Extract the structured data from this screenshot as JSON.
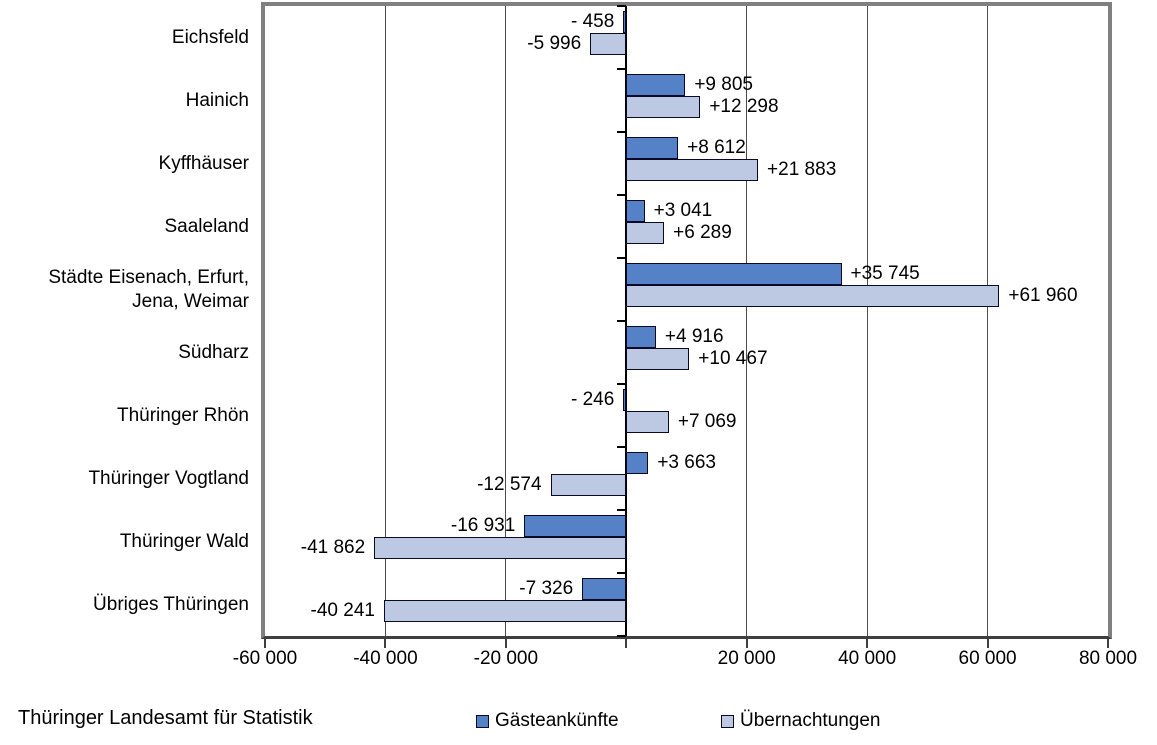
{
  "footer": {
    "source": "Thüringer Landesamt für Statistik"
  },
  "legend": [
    {
      "label": "Gästeankünfte",
      "color": "#5581C6"
    },
    {
      "label": "Übernachtungen",
      "color": "#BDC9E2"
    }
  ],
  "colors": {
    "bar_border": "#0a0a28",
    "plot_border": "#808080",
    "gridline": "#4d4d4d",
    "axis": "#000000"
  },
  "chart_data": {
    "type": "bar",
    "orientation": "horizontal",
    "title": "",
    "xlabel": "",
    "ylabel": "",
    "grid": true,
    "legend_position": "bottom",
    "categories": [
      "Eichsfeld",
      "Hainich",
      "Kyffhäuser",
      "Saaleland",
      "Städte Eisenach, Erfurt, Jena, Weimar",
      "Südharz",
      "Thüringer Rhön",
      "Thüringer Vogtland",
      "Thüringer Wald",
      "Übriges Thüringen"
    ],
    "series": [
      {
        "name": "Gästeankünfte",
        "color": "#5581C6",
        "values": [
          -458,
          9805,
          8612,
          3041,
          35745,
          4916,
          -246,
          3663,
          -16931,
          -7326
        ],
        "display_labels": [
          "- 458",
          "+9 805",
          "+8 612",
          "+3 041",
          "+35 745",
          "+4 916",
          "- 246",
          "+3 663",
          "-16 931",
          "-7 326"
        ]
      },
      {
        "name": "Übernachtungen",
        "color": "#BDC9E2",
        "values": [
          -5996,
          12298,
          21883,
          6289,
          61960,
          10467,
          7069,
          -12574,
          -41862,
          -40241
        ],
        "display_labels": [
          "-5 996",
          "+12 298",
          "+21 883",
          "+6 289",
          "+61 960",
          "+10 467",
          "+7 069",
          "-12 574",
          "-41 862",
          "-40 241"
        ]
      }
    ],
    "x_axis": {
      "min": -60000,
      "max": 80000,
      "tick_step": 20000,
      "ticks": [
        {
          "value": -60000,
          "label": "-60 000"
        },
        {
          "value": -40000,
          "label": "-40 000"
        },
        {
          "value": -20000,
          "label": "-20 000"
        },
        {
          "value": 0,
          "label": ""
        },
        {
          "value": 20000,
          "label": "20 000"
        },
        {
          "value": 40000,
          "label": "40 000"
        },
        {
          "value": 60000,
          "label": "60 000"
        },
        {
          "value": 80000,
          "label": "80 000"
        }
      ]
    }
  }
}
